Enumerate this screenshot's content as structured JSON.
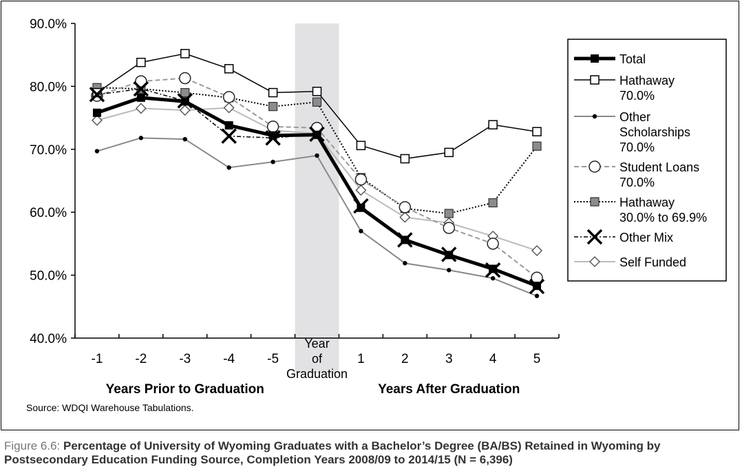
{
  "chart_data": {
    "type": "line",
    "categories": [
      "-1",
      "-2",
      "-3",
      "-4",
      "-5",
      "Year of Graduation",
      "1",
      "2",
      "3",
      "4",
      "5"
    ],
    "ylim": [
      40,
      90
    ],
    "yticks": [
      "40.0%",
      "50.0%",
      "60.0%",
      "70.0%",
      "80.0%",
      "90.0%"
    ],
    "group_labels": {
      "before": "Years Prior to Graduation",
      "after": "Years After Graduation"
    },
    "highlight_label": [
      "Year",
      "of",
      "Graduation"
    ],
    "grid": false,
    "legend_position": "right",
    "series": [
      {
        "name": "Total",
        "values": [
          75.8,
          78.2,
          77.6,
          73.8,
          72.2,
          72.3,
          60.7,
          55.6,
          53.2,
          51.0,
          48.3
        ],
        "color": "#000000",
        "style": "solid",
        "marker": "filled-square",
        "width": 5
      },
      {
        "name": "Hathaway 70.0%",
        "values": [
          79.0,
          83.8,
          85.2,
          82.8,
          79.0,
          79.2,
          70.6,
          68.5,
          69.5,
          73.9,
          72.8
        ],
        "color": "#000000",
        "style": "solid",
        "marker": "open-square",
        "width": 1.5
      },
      {
        "name": "Other Scholarships 70.0%",
        "values": [
          69.7,
          71.8,
          71.6,
          67.1,
          68.0,
          69.0,
          57.0,
          51.9,
          50.8,
          49.5,
          46.7
        ],
        "color": "#888888",
        "style": "solid",
        "marker": "dot",
        "width": 2
      },
      {
        "name": "Student Loans 70.0%",
        "values": [
          78.5,
          80.8,
          81.3,
          78.3,
          73.6,
          73.4,
          65.2,
          60.8,
          57.5,
          55.0,
          49.6
        ],
        "color": "#999999",
        "style": "dashed",
        "marker": "open-circle",
        "width": 2
      },
      {
        "name": "Hathaway 30.0% to 69.9%",
        "values": [
          79.8,
          79.6,
          79.0,
          78.2,
          76.8,
          77.5,
          65.5,
          60.6,
          59.8,
          61.5,
          70.5
        ],
        "color": "#000000",
        "style": "dotted",
        "marker": "grey-square",
        "width": 2
      },
      {
        "name": "Other Mix",
        "values": [
          78.7,
          79.6,
          77.7,
          72.1,
          71.8,
          72.4,
          61.0,
          55.6,
          53.3,
          50.8,
          48.2
        ],
        "color": "#000000",
        "style": "dashdot",
        "marker": "x",
        "width": 1.5
      },
      {
        "name": "Self Funded",
        "values": [
          74.6,
          76.5,
          76.2,
          76.6,
          73.0,
          72.5,
          63.5,
          59.2,
          58.3,
          56.2,
          53.9
        ],
        "color": "#bbbbbb",
        "style": "solid",
        "marker": "diamond",
        "width": 2
      }
    ],
    "legend": [
      {
        "lines": [
          "Total"
        ]
      },
      {
        "lines": [
          "Hathaway",
          "70.0%"
        ]
      },
      {
        "lines": [
          "Other",
          "Scholarships",
          "70.0%"
        ]
      },
      {
        "lines": [
          "Student Loans",
          "70.0%"
        ]
      },
      {
        "lines": [
          "Hathaway",
          "30.0% to 69.9%"
        ]
      },
      {
        "lines": [
          "Other Mix"
        ]
      },
      {
        "lines": [
          "Self Funded"
        ]
      }
    ]
  },
  "source": "Source: WDQI Warehouse Tabulations.",
  "caption": {
    "lead": "Figure 6.6:",
    "text": "Percentage of University of Wyoming Graduates with a Bachelor’s Degree (BA/BS) Retained in Wyoming by Postsecondary Education Funding Source, Completion Years 2008/09 to 2014/15 (N = 6,396)"
  }
}
